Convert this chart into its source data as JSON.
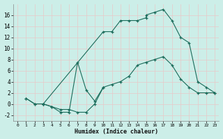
{
  "xlabel": "Humidex (Indice chaleur)",
  "bg_color": "#cceee8",
  "line_color": "#1a6b5a",
  "xlim": [
    -0.5,
    23.5
  ],
  "ylim": [
    -3,
    18
  ],
  "xticks": [
    0,
    1,
    2,
    3,
    4,
    5,
    6,
    7,
    8,
    9,
    10,
    11,
    12,
    13,
    14,
    15,
    16,
    17,
    18,
    19,
    20,
    21,
    22,
    23
  ],
  "yticks": [
    -2,
    0,
    2,
    4,
    6,
    8,
    10,
    12,
    14,
    16
  ],
  "series": [
    {
      "x": [
        1,
        2,
        3,
        10,
        11,
        12,
        13,
        14,
        15,
        15,
        16,
        17,
        18,
        19,
        20,
        21,
        22,
        23
      ],
      "y": [
        1,
        0,
        0,
        13,
        13,
        15,
        15,
        15,
        15.5,
        16,
        16.5,
        17,
        15,
        12,
        11,
        4,
        3,
        2
      ]
    },
    {
      "x": [
        1,
        2,
        3,
        4,
        5,
        6,
        7,
        8,
        9,
        10,
        11,
        12,
        13,
        14,
        15,
        16,
        17,
        18,
        19,
        20,
        21,
        22,
        23
      ],
      "y": [
        1,
        0,
        0,
        -0.5,
        -1,
        -1,
        -1.5,
        -1.5,
        0,
        3,
        3.5,
        4,
        5,
        7,
        7.5,
        8,
        8.5,
        7,
        4.5,
        3,
        2,
        2,
        2
      ]
    },
    {
      "x": [
        3,
        4,
        5,
        6,
        7,
        8,
        9,
        10
      ],
      "y": [
        0,
        -0.5,
        -1.5,
        -1.5,
        7.5,
        2.5,
        0.5,
        3
      ]
    }
  ]
}
